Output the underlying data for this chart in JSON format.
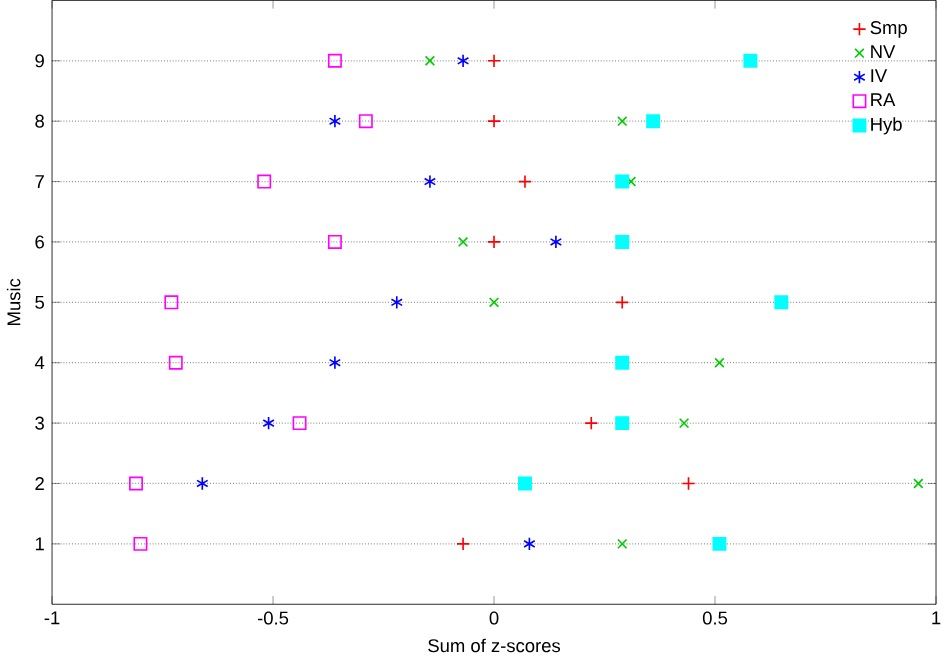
{
  "chart_data": {
    "type": "scatter",
    "xlabel": "Sum of z-scores",
    "ylabel": "Music",
    "xlim": [
      -1,
      1
    ],
    "xticks": [
      -1,
      -0.5,
      0,
      0.5,
      1
    ],
    "ylim": [
      0,
      10
    ],
    "yticks": [
      1,
      2,
      3,
      4,
      5,
      6,
      7,
      8,
      9
    ],
    "grid": "y",
    "legend": "top right",
    "series": [
      {
        "name": "Smp",
        "color": "#ff0000",
        "marker": "plus",
        "x": [
          -0.07,
          0.44,
          0.22,
          null,
          0.29,
          0,
          0.07,
          0,
          0
        ],
        "values": [
          1,
          2,
          3,
          null,
          5,
          6,
          7,
          8,
          9
        ]
      },
      {
        "name": "NV",
        "color": "#00cc00",
        "marker": "cross",
        "x": [
          0.29,
          0.96,
          0.43,
          0.51,
          0,
          -0.07,
          0.31,
          0.29,
          -0.145
        ],
        "values": [
          1,
          2,
          3,
          4,
          5,
          6,
          7,
          8,
          9
        ]
      },
      {
        "name": "IV",
        "color": "#0000ff",
        "x": [
          0.08,
          -0.66,
          -0.51,
          -0.36,
          -0.22,
          0.14,
          -0.145,
          -0.36,
          -0.07
        ],
        "values": [
          1,
          2,
          3,
          4,
          5,
          6,
          7,
          8,
          9
        ]
      },
      {
        "name": "RA",
        "color": "#ff00ff",
        "marker": "square",
        "x": [
          -0.8,
          -0.81,
          -0.44,
          -0.72,
          -0.73,
          -0.36,
          -0.52,
          -0.29,
          -0.36
        ],
        "values": [
          1,
          2,
          3,
          4,
          5,
          6,
          7,
          8,
          9
        ]
      },
      {
        "name": "Hyb",
        "color": "#00ffff",
        "marker": "square*",
        "x": [
          0.51,
          0.07,
          0.29,
          0.29,
          0.65,
          0.29,
          0.29,
          0.36,
          0.58
        ],
        "values": [
          1,
          2,
          3,
          4,
          5,
          6,
          7,
          8,
          9
        ]
      }
    ]
  }
}
